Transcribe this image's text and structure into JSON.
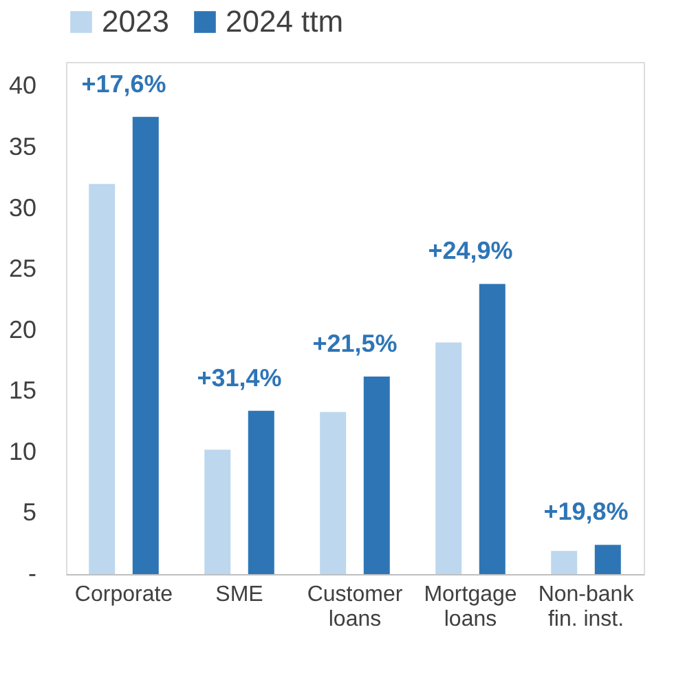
{
  "chart_data": {
    "type": "bar",
    "categories": [
      "Corporate",
      "SME",
      "Customer loans",
      "Mortgage loans",
      "Non-bank fin. inst."
    ],
    "series": [
      {
        "name": "2023",
        "color": "#bdd7ee",
        "values": [
          32,
          10.2,
          13.3,
          19,
          1.9
        ]
      },
      {
        "name": "2024 ttm",
        "color": "#2e75b6",
        "values": [
          37.5,
          13.4,
          16.2,
          23.8,
          2.4
        ]
      }
    ],
    "ylim": [
      0,
      42
    ],
    "yticks": [
      {
        "value": 0,
        "label": "-"
      },
      5,
      10,
      15,
      20,
      25,
      30,
      35,
      40
    ],
    "annotations": [
      "+17,6%",
      "+31,4%",
      "+21,5%",
      "+24,9%",
      "+19,8%"
    ],
    "grid": false,
    "legend": "top"
  }
}
